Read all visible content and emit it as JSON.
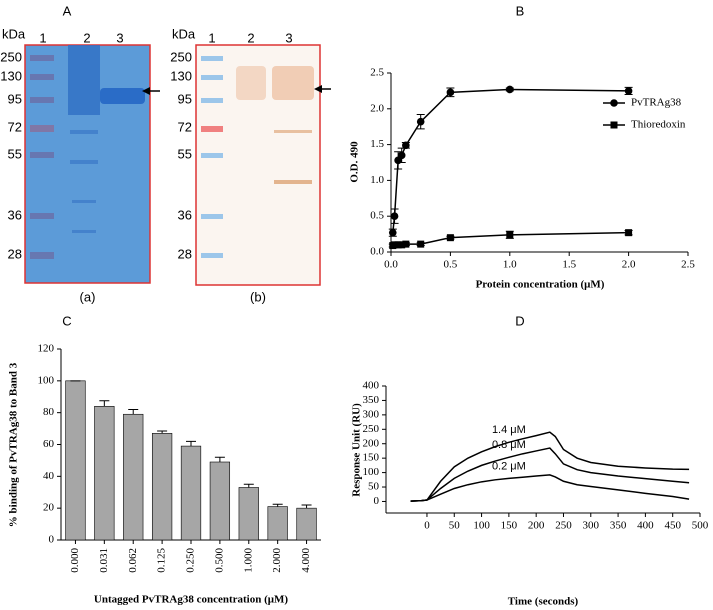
{
  "gels": {
    "panel_label": "A",
    "unit": "kDa",
    "panels": [
      {
        "caption": "(a)",
        "lanes": [
          "1",
          "2",
          "3"
        ],
        "markers": [
          "250",
          "130",
          "95",
          "72",
          "55",
          "36",
          "28"
        ]
      },
      {
        "caption": "(b)",
        "lanes": [
          "1",
          "2",
          "3"
        ],
        "markers": [
          "250",
          "130",
          "95",
          "72",
          "55",
          "36",
          "28"
        ]
      }
    ]
  },
  "chart_data": [
    {
      "type": "line",
      "panel_label": "B",
      "x_label": "Protein concentration (μM)",
      "y_label": "O.D. 490",
      "x": [
        0.015,
        0.03,
        0.06,
        0.09,
        0.125,
        0.25,
        0.5,
        1.0,
        2.0
      ],
      "series": [
        {
          "name": "PvTRAg38",
          "color": "#000000",
          "marker": "circle",
          "values": [
            0.27,
            0.5,
            1.28,
            1.35,
            1.49,
            1.82,
            2.23,
            2.27,
            2.25
          ],
          "errors": [
            0.05,
            0.1,
            0.12,
            0.1,
            0.04,
            0.1,
            0.06,
            0.02,
            0.05
          ]
        },
        {
          "name": "Thioredoxin",
          "color": "#000000",
          "marker": "square",
          "values": [
            0.09,
            0.1,
            0.1,
            0.1,
            0.11,
            0.11,
            0.2,
            0.24,
            0.27
          ],
          "errors": [
            0.02,
            0.02,
            0.02,
            0.02,
            0.02,
            0.02,
            0.02,
            0.05,
            0.03
          ]
        }
      ],
      "xlim": [
        0,
        2.5
      ],
      "xticks": [
        {
          "value": 0,
          "label": "0.0"
        },
        0.5,
        {
          "value": 1,
          "label": "1.0"
        },
        1.5,
        {
          "value": 2,
          "label": "2.0"
        },
        2.5
      ],
      "ylim": [
        0,
        2.5
      ],
      "yticks": [
        {
          "value": 0,
          "label": "0.0"
        },
        0.5,
        {
          "value": 1,
          "label": "1.0"
        },
        1.5,
        {
          "value": 2,
          "label": "2.0"
        },
        2.5
      ],
      "legend": "right"
    },
    {
      "type": "bar",
      "panel_label": "C",
      "x_label": "Untagged PvTRAg38 concentration (μM)",
      "y_label": "% binding of PvTRAg38 to Band 3",
      "categories": [
        "0.000",
        "0.031",
        "0.062",
        "0.125",
        "0.250",
        "0.500",
        "1.000",
        "2.000",
        "4.000"
      ],
      "values": [
        100,
        84,
        79,
        67,
        59,
        49,
        33,
        21,
        20
      ],
      "errors": [
        0,
        3.5,
        3,
        1.5,
        3,
        3,
        2,
        1.5,
        2
      ],
      "color": "#a6a6a6",
      "ylim": [
        0,
        120
      ],
      "yticks": [
        0,
        20,
        40,
        60,
        80,
        100,
        120
      ]
    },
    {
      "type": "line",
      "panel_label": "D",
      "x_label": "Time (seconds)",
      "y_label": "Response Unit (RU)",
      "x": [
        -30,
        -10,
        0,
        25,
        50,
        75,
        100,
        125,
        150,
        175,
        200,
        225,
        235,
        250,
        275,
        300,
        350,
        400,
        450,
        480
      ],
      "series": [
        {
          "name": "1.4 μM",
          "color": "#000000",
          "values": [
            1,
            3,
            5,
            70,
            120,
            150,
            172,
            190,
            205,
            217,
            228,
            240,
            225,
            180,
            150,
            135,
            122,
            116,
            112,
            111
          ]
        },
        {
          "name": "0.8 μM",
          "color": "#000000",
          "values": [
            1,
            3,
            5,
            45,
            80,
            105,
            125,
            140,
            153,
            165,
            175,
            185,
            165,
            130,
            110,
            100,
            88,
            79,
            70,
            65
          ]
        },
        {
          "name": "0.2 μM",
          "color": "#000000",
          "values": [
            1,
            3,
            5,
            25,
            45,
            58,
            68,
            75,
            80,
            84,
            88,
            92,
            85,
            70,
            58,
            52,
            40,
            28,
            17,
            8
          ]
        }
      ],
      "xlim": [
        -75,
        500
      ],
      "xticks": [
        0,
        50,
        100,
        150,
        200,
        250,
        300,
        350,
        400,
        450,
        500
      ],
      "ylim": [
        -40,
        400
      ],
      "yticks": [
        0,
        50,
        100,
        150,
        200,
        250,
        300,
        350,
        400
      ],
      "legend": "inline"
    }
  ]
}
